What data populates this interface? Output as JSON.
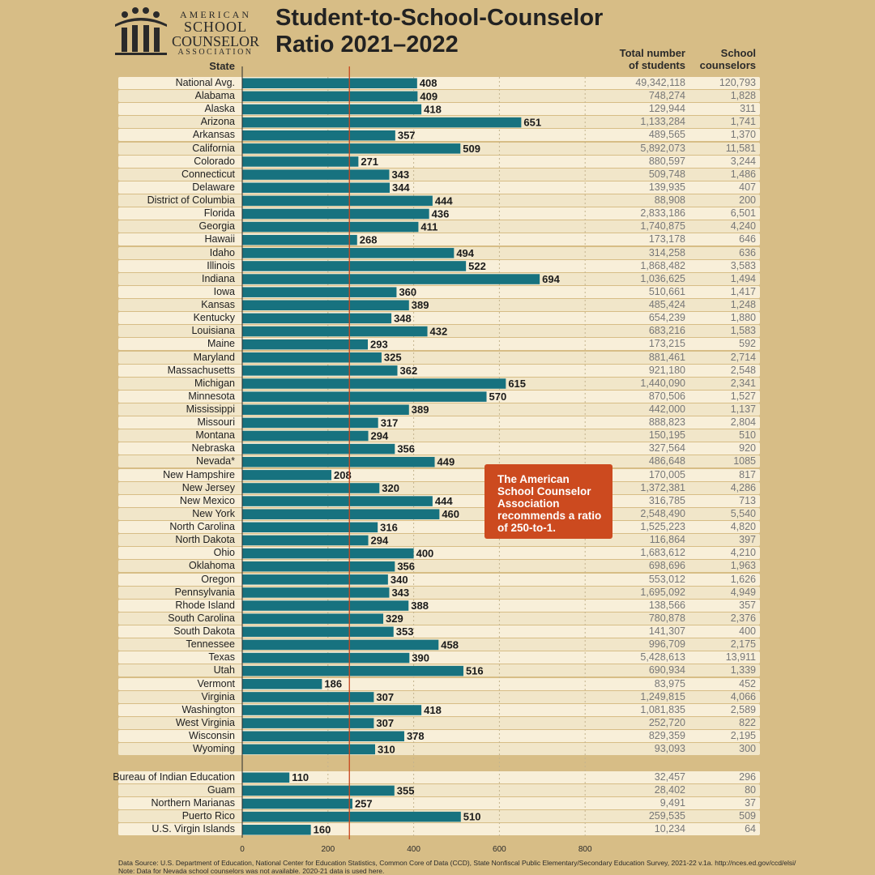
{
  "logo": {
    "line1": "AMERICAN",
    "line2": "SCHOOL",
    "line3": "COUNSELOR",
    "line4": "ASSOCIATION"
  },
  "title_line1": "Student-to-School-Counselor",
  "title_line2": "Ratio 2021–2022",
  "headers": {
    "state": "State",
    "total_l1": "Total number",
    "total_l2": "of students",
    "couns_l1": "School",
    "couns_l2": "counselors"
  },
  "callout": "The American School Counselor Association recommends a ratio of 250-to-1.",
  "footer_line1": "Data Source: U.S. Department of Education, National Center for Education Statistics, Common Core of Data (CCD), State Nonfiscal Public Elementary/Secondary Education Survey, 2021-22 v.1a. http://nces.ed.gov/ccd/elsi/",
  "footer_line2": "Note: Data for Nevada school counselors was not available. 2020-21 data is used here.",
  "colors": {
    "bar": "#17727f",
    "reference_line": "#c9451c",
    "background": "#d7bd86",
    "callout": "#cc4a1f"
  },
  "chart_data": {
    "type": "bar",
    "orientation": "horizontal",
    "title": "Student-to-School-Counselor Ratio 2021–2022",
    "xlim": [
      0,
      800
    ],
    "x_ticks": [
      "0",
      "200",
      "400",
      "600",
      "800"
    ],
    "grid": true,
    "reference_line": 250,
    "group1": [
      {
        "state": "National Avg.",
        "ratio": 408,
        "students": "49,342,118",
        "counselors": "120,793"
      },
      {
        "state": "Alabama",
        "ratio": 409,
        "students": "748,274",
        "counselors": "1,828"
      },
      {
        "state": "Alaska",
        "ratio": 418,
        "students": "129,944",
        "counselors": "311"
      },
      {
        "state": "Arizona",
        "ratio": 651,
        "students": "1,133,284",
        "counselors": "1,741"
      },
      {
        "state": "Arkansas",
        "ratio": 357,
        "students": "489,565",
        "counselors": "1,370"
      },
      {
        "state": "California",
        "ratio": 509,
        "students": "5,892,073",
        "counselors": "11,581"
      },
      {
        "state": "Colorado",
        "ratio": 271,
        "students": "880,597",
        "counselors": "3,244"
      },
      {
        "state": "Connecticut",
        "ratio": 343,
        "students": "509,748",
        "counselors": "1,486"
      },
      {
        "state": "Delaware",
        "ratio": 344,
        "students": "139,935",
        "counselors": "407"
      },
      {
        "state": "District of Columbia",
        "ratio": 444,
        "students": "88,908",
        "counselors": "200"
      },
      {
        "state": "Florida",
        "ratio": 436,
        "students": "2,833,186",
        "counselors": "6,501"
      },
      {
        "state": "Georgia",
        "ratio": 411,
        "students": "1,740,875",
        "counselors": "4,240"
      },
      {
        "state": "Hawaii",
        "ratio": 268,
        "students": "173,178",
        "counselors": "646"
      },
      {
        "state": "Idaho",
        "ratio": 494,
        "students": "314,258",
        "counselors": "636"
      },
      {
        "state": "Illinois",
        "ratio": 522,
        "students": "1,868,482",
        "counselors": "3,583"
      },
      {
        "state": "Indiana",
        "ratio": 694,
        "students": "1,036,625",
        "counselors": "1,494"
      },
      {
        "state": "Iowa",
        "ratio": 360,
        "students": "510,661",
        "counselors": "1,417"
      },
      {
        "state": "Kansas",
        "ratio": 389,
        "students": "485,424",
        "counselors": "1,248"
      },
      {
        "state": "Kentucky",
        "ratio": 348,
        "students": "654,239",
        "counselors": "1,880"
      },
      {
        "state": "Louisiana",
        "ratio": 432,
        "students": "683,216",
        "counselors": "1,583"
      },
      {
        "state": "Maine",
        "ratio": 293,
        "students": "173,215",
        "counselors": "592"
      },
      {
        "state": "Maryland",
        "ratio": 325,
        "students": "881,461",
        "counselors": "2,714"
      },
      {
        "state": "Massachusetts",
        "ratio": 362,
        "students": "921,180",
        "counselors": "2,548"
      },
      {
        "state": "Michigan",
        "ratio": 615,
        "students": "1,440,090",
        "counselors": "2,341"
      },
      {
        "state": "Minnesota",
        "ratio": 570,
        "students": "870,506",
        "counselors": "1,527"
      },
      {
        "state": "Mississippi",
        "ratio": 389,
        "students": "442,000",
        "counselors": "1,137"
      },
      {
        "state": "Missouri",
        "ratio": 317,
        "students": "888,823",
        "counselors": "2,804"
      },
      {
        "state": "Montana",
        "ratio": 294,
        "students": "150,195",
        "counselors": "510"
      },
      {
        "state": "Nebraska",
        "ratio": 356,
        "students": "327,564",
        "counselors": "920"
      },
      {
        "state": "Nevada*",
        "ratio": 449,
        "students": "486,648",
        "counselors": "1085"
      },
      {
        "state": "New Hampshire",
        "ratio": 208,
        "students": "170,005",
        "counselors": "817"
      },
      {
        "state": "New Jersey",
        "ratio": 320,
        "students": "1,372,381",
        "counselors": "4,286"
      },
      {
        "state": "New Mexico",
        "ratio": 444,
        "students": "316,785",
        "counselors": "713"
      },
      {
        "state": "New York",
        "ratio": 460,
        "students": "2,548,490",
        "counselors": "5,540"
      },
      {
        "state": "North Carolina",
        "ratio": 316,
        "students": "1,525,223",
        "counselors": "4,820"
      },
      {
        "state": "North Dakota",
        "ratio": 294,
        "students": "116,864",
        "counselors": "397"
      },
      {
        "state": "Ohio",
        "ratio": 400,
        "students": "1,683,612",
        "counselors": "4,210"
      },
      {
        "state": "Oklahoma",
        "ratio": 356,
        "students": "698,696",
        "counselors": "1,963"
      },
      {
        "state": "Oregon",
        "ratio": 340,
        "students": "553,012",
        "counselors": "1,626"
      },
      {
        "state": "Pennsylvania",
        "ratio": 343,
        "students": "1,695,092",
        "counselors": "4,949"
      },
      {
        "state": "Rhode Island",
        "ratio": 388,
        "students": "138,566",
        "counselors": "357"
      },
      {
        "state": "South Carolina",
        "ratio": 329,
        "students": "780,878",
        "counselors": "2,376"
      },
      {
        "state": "South Dakota",
        "ratio": 353,
        "students": "141,307",
        "counselors": "400"
      },
      {
        "state": "Tennessee",
        "ratio": 458,
        "students": "996,709",
        "counselors": "2,175"
      },
      {
        "state": "Texas",
        "ratio": 390,
        "students": "5,428,613",
        "counselors": "13,911"
      },
      {
        "state": "Utah",
        "ratio": 516,
        "students": "690,934",
        "counselors": "1,339"
      },
      {
        "state": "Vermont",
        "ratio": 186,
        "students": "83,975",
        "counselors": "452"
      },
      {
        "state": "Virginia",
        "ratio": 307,
        "students": "1,249,815",
        "counselors": "4,066"
      },
      {
        "state": "Washington",
        "ratio": 418,
        "students": "1,081,835",
        "counselors": "2,589"
      },
      {
        "state": "West Virginia",
        "ratio": 307,
        "students": "252,720",
        "counselors": "822"
      },
      {
        "state": "Wisconsin",
        "ratio": 378,
        "students": "829,359",
        "counselors": "2,195"
      },
      {
        "state": "Wyoming",
        "ratio": 310,
        "students": "93,093",
        "counselors": "300"
      }
    ],
    "group2": [
      {
        "state": "Bureau of Indian Education",
        "ratio": 110,
        "students": "32,457",
        "counselors": "296"
      },
      {
        "state": "Guam",
        "ratio": 355,
        "students": "28,402",
        "counselors": "80"
      },
      {
        "state": "Northern Marianas",
        "ratio": 257,
        "students": "9,491",
        "counselors": "37"
      },
      {
        "state": "Puerto Rico",
        "ratio": 510,
        "students": "259,535",
        "counselors": "509"
      },
      {
        "state": "U.S. Virgin Islands",
        "ratio": 160,
        "students": "10,234",
        "counselors": "64"
      }
    ]
  }
}
